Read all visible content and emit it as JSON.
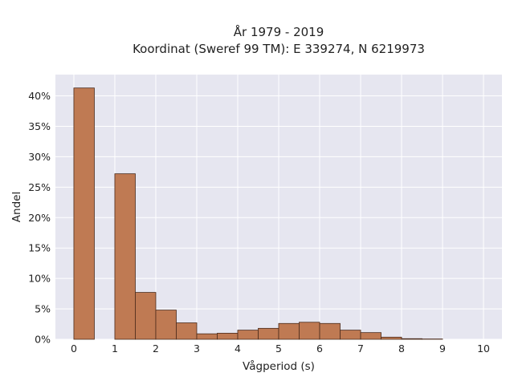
{
  "chart_data": {
    "type": "bar",
    "title_lines": [
      "År 1979 - 2019",
      "Koordinat (Sweref 99 TM): E 339274, N 6219973"
    ],
    "xlabel": "Vågperiod (s)",
    "ylabel": "Andel",
    "xlim": [
      -0.45,
      10.45
    ],
    "ylim": [
      0,
      43.5
    ],
    "x_ticks": [
      0,
      1,
      2,
      3,
      4,
      5,
      6,
      7,
      8,
      9,
      10
    ],
    "x_tick_labels": [
      "0",
      "1",
      "2",
      "3",
      "4",
      "5",
      "6",
      "7",
      "8",
      "9",
      "10"
    ],
    "y_ticks": [
      0,
      5,
      10,
      15,
      20,
      25,
      30,
      35,
      40
    ],
    "y_tick_labels": [
      "0%",
      "5%",
      "10%",
      "15%",
      "20%",
      "25%",
      "30%",
      "35%",
      "40%"
    ],
    "bin_width": 0.5,
    "bins": [
      {
        "start": 0.0,
        "end": 0.5,
        "value": 41.3
      },
      {
        "start": 0.5,
        "end": 1.0,
        "value": 0
      },
      {
        "start": 1.0,
        "end": 1.5,
        "value": 27.2
      },
      {
        "start": 1.5,
        "end": 2.0,
        "value": 7.7
      },
      {
        "start": 2.0,
        "end": 2.5,
        "value": 4.8
      },
      {
        "start": 2.5,
        "end": 3.0,
        "value": 2.7
      },
      {
        "start": 3.0,
        "end": 3.5,
        "value": 0.9
      },
      {
        "start": 3.5,
        "end": 4.0,
        "value": 1.0
      },
      {
        "start": 4.0,
        "end": 4.5,
        "value": 1.5
      },
      {
        "start": 4.5,
        "end": 5.0,
        "value": 1.8
      },
      {
        "start": 5.0,
        "end": 5.5,
        "value": 2.6
      },
      {
        "start": 5.5,
        "end": 6.0,
        "value": 2.8
      },
      {
        "start": 6.0,
        "end": 6.5,
        "value": 2.6
      },
      {
        "start": 6.5,
        "end": 7.0,
        "value": 1.5
      },
      {
        "start": 7.0,
        "end": 7.5,
        "value": 1.1
      },
      {
        "start": 7.5,
        "end": 8.0,
        "value": 0.35
      },
      {
        "start": 8.0,
        "end": 8.5,
        "value": 0.1
      },
      {
        "start": 8.5,
        "end": 9.0,
        "value": 0.05
      },
      {
        "start": 9.0,
        "end": 9.5,
        "value": 0
      },
      {
        "start": 9.5,
        "end": 10.0,
        "value": 0
      }
    ],
    "grid": true,
    "legend": "none",
    "colors": {
      "bar_fill": "#bf7a53",
      "bar_stroke": "#4a2a1a",
      "plot_background": "#e6e6f0",
      "grid": "#ffffff"
    }
  }
}
